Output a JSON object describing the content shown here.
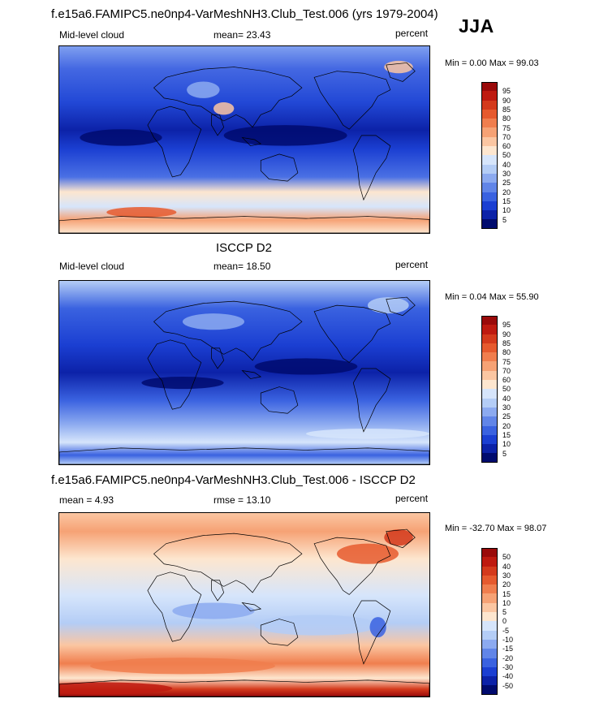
{
  "header": {
    "title": "f.e15a6.FAMIPC5.ne0np4-VarMeshNH3.Club_Test.006 (yrs 1979-2004)",
    "season": "JJA"
  },
  "panels": [
    {
      "id": "model",
      "top_title": "",
      "left_label": "Mid-level cloud",
      "center_label": "mean=  23.43",
      "right_label": "percent",
      "minmax": "Min =   0.00 Max =  99.03",
      "colorbar_labels": [
        "95",
        "90",
        "85",
        "80",
        "75",
        "70",
        "60",
        "50",
        "40",
        "30",
        "25",
        "20",
        "15",
        "10",
        "5"
      ],
      "colorbar_colors": [
        "#9a0a0a",
        "#be1a10",
        "#d43a1c",
        "#e65a2e",
        "#f07e4e",
        "#f6a275",
        "#fbc6a2",
        "#fde6cf",
        "#d6e5fb",
        "#b4cdf6",
        "#8caaf0",
        "#6185e8",
        "#3a62e0",
        "#1b3fd2",
        "#0c22a8",
        "#000b6e"
      ],
      "gradient": "model"
    },
    {
      "id": "obs",
      "top_title": "ISCCP D2",
      "left_label": "Mid-level cloud",
      "center_label": "mean=  18.50",
      "right_label": "percent",
      "minmax": "Min =   0.04 Max =  55.90",
      "colorbar_labels": [
        "95",
        "90",
        "85",
        "80",
        "75",
        "70",
        "60",
        "50",
        "40",
        "30",
        "25",
        "20",
        "15",
        "10",
        "5"
      ],
      "colorbar_colors": [
        "#9a0a0a",
        "#be1a10",
        "#d43a1c",
        "#e65a2e",
        "#f07e4e",
        "#f6a275",
        "#fbc6a2",
        "#fde6cf",
        "#d6e5fb",
        "#b4cdf6",
        "#8caaf0",
        "#6185e8",
        "#3a62e0",
        "#1b3fd2",
        "#0c22a8",
        "#000b6e"
      ],
      "gradient": "obs"
    },
    {
      "id": "diff",
      "top_title": "f.e15a6.FAMIPC5.ne0np4-VarMeshNH3.Club_Test.006 - ISCCP D2",
      "left_label": "mean =   4.93",
      "center_label": "rmse =  13.10",
      "right_label": "percent",
      "minmax": "Min = -32.70 Max =  98.07",
      "colorbar_labels": [
        "50",
        "40",
        "30",
        "20",
        "15",
        "10",
        "5",
        "0",
        "-5",
        "-10",
        "-15",
        "-20",
        "-30",
        "-40",
        "-50"
      ],
      "colorbar_colors": [
        "#9a0a0a",
        "#be1a10",
        "#d43a1c",
        "#e65a2e",
        "#f07e4e",
        "#f6a275",
        "#fbc6a2",
        "#fde6cf",
        "#d6e5fb",
        "#b4cdf6",
        "#8caaf0",
        "#6185e8",
        "#3a62e0",
        "#1b3fd2",
        "#0c22a8",
        "#000b6e"
      ],
      "gradient": "diff"
    }
  ],
  "chart_data": [
    {
      "type": "heatmap",
      "title": "f.e15a6.FAMIPC5.ne0np4-VarMeshNH3.Club_Test.006 (yrs 1979-2004)",
      "variable": "Mid-level cloud",
      "units": "percent",
      "mean": 23.43,
      "min": 0.0,
      "max": 99.03,
      "levels": [
        5,
        10,
        15,
        20,
        25,
        30,
        40,
        50,
        60,
        70,
        75,
        80,
        85,
        90,
        95
      ],
      "projection": "global cylindrical equidistant"
    },
    {
      "type": "heatmap",
      "title": "ISCCP D2",
      "variable": "Mid-level cloud",
      "units": "percent",
      "mean": 18.5,
      "min": 0.04,
      "max": 55.9,
      "levels": [
        5,
        10,
        15,
        20,
        25,
        30,
        40,
        50,
        60,
        70,
        75,
        80,
        85,
        90,
        95
      ],
      "projection": "global cylindrical equidistant"
    },
    {
      "type": "heatmap",
      "title": "f.e15a6.FAMIPC5.ne0np4-VarMeshNH3.Club_Test.006 - ISCCP D2",
      "units": "percent",
      "mean": 4.93,
      "rmse": 13.1,
      "min": -32.7,
      "max": 98.07,
      "levels": [
        -50,
        -40,
        -30,
        -20,
        -15,
        -10,
        -5,
        0,
        5,
        10,
        15,
        20,
        30,
        40,
        50
      ],
      "projection": "global cylindrical equidistant"
    }
  ]
}
